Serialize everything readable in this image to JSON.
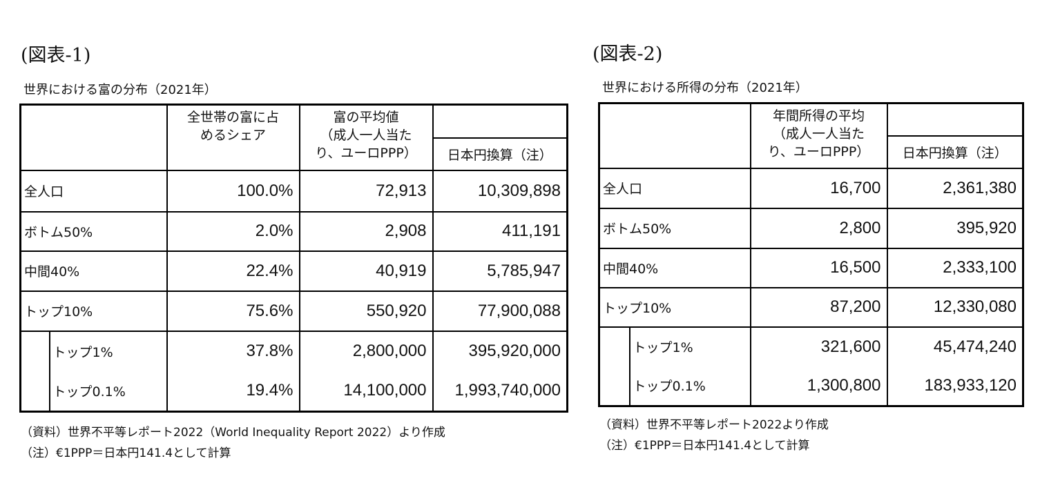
{
  "figure1": {
    "label": "(図表-1)",
    "title": "世界における富の分布（2021年）",
    "headers": {
      "share": [
        "全世帯の富に占",
        "めるシェア"
      ],
      "mean": [
        "富の平均値",
        "（成人一人当た",
        "り、ユーロPPP）"
      ],
      "yen": "日本円換算（注）"
    },
    "rows": [
      {
        "label": "全人口",
        "share": "100.0%",
        "mean": "72,913",
        "yen": "10,309,898"
      },
      {
        "label": "ボトム50%",
        "share": "2.0%",
        "mean": "2,908",
        "yen": "411,191"
      },
      {
        "label": "中間40%",
        "share": "22.4%",
        "mean": "40,919",
        "yen": "5,785,947"
      },
      {
        "label": "トップ10%",
        "share": "75.6%",
        "mean": "550,920",
        "yen": "77,900,088"
      },
      {
        "label": "トップ1%",
        "share": "37.8%",
        "mean": "2,800,000",
        "yen": "395,920,000"
      },
      {
        "label": "トップ0.1%",
        "share": "19.4%",
        "mean": "14,100,000",
        "yen": "1,993,740,000"
      }
    ],
    "notes": [
      "（資料）世界不平等レポート2022（World Inequality Report 2022）より作成",
      "（注）€1PPP＝日本円141.4として計算"
    ]
  },
  "figure2": {
    "label": "(図表-2)",
    "title": "世界における所得の分布（2021年）",
    "headers": {
      "mean": [
        "年間所得の平均",
        "（成人一人当た",
        "り、ユーロPPP）"
      ],
      "yen": "日本円換算（注）"
    },
    "rows": [
      {
        "label": "全人口",
        "mean": "16,700",
        "yen": "2,361,380"
      },
      {
        "label": "ボトム50%",
        "mean": "2,800",
        "yen": "395,920"
      },
      {
        "label": "中間40%",
        "mean": "16,500",
        "yen": "2,333,100"
      },
      {
        "label": "トップ10%",
        "mean": "87,200",
        "yen": "12,330,080"
      },
      {
        "label": "トップ1%",
        "mean": "321,600",
        "yen": "45,474,240"
      },
      {
        "label": "トップ0.1%",
        "mean": "1,300,800",
        "yen": "183,933,120"
      }
    ],
    "notes": [
      "（資料）世界不平等レポート2022より作成",
      "（注）€1PPP＝日本円141.4として計算"
    ]
  }
}
